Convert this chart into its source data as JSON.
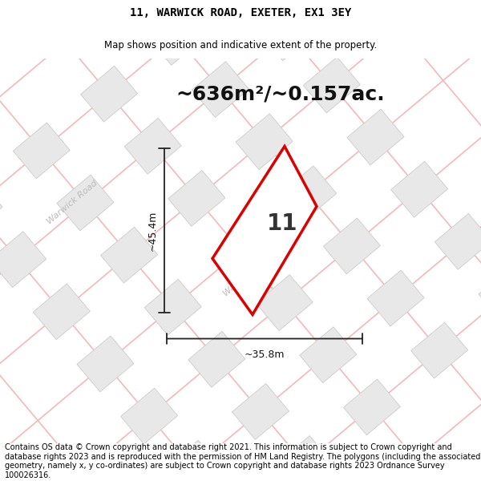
{
  "title_line1": "11, WARWICK ROAD, EXETER, EX1 3EY",
  "title_line2": "Map shows position and indicative extent of the property.",
  "area_text": "~636m²/~0.157ac.",
  "dim_vertical": "~45.4m",
  "dim_horizontal": "~35.8m",
  "property_number": "11",
  "footer_text": "Contains OS data © Crown copyright and database right 2021. This information is subject to Crown copyright and database rights 2023 and is reproduced with the permission of HM Land Registry. The polygons (including the associated geometry, namely x, y co-ordinates) are subject to Crown copyright and database rights 2023 Ordnance Survey 100026316.",
  "bg_color": "#ffffff",
  "road_color": "#f5b8b8",
  "road_label_color": "#bbbbbb",
  "building_fill": "#e8e8e8",
  "building_edge": "#cccccc",
  "property_fill": "#ffffff",
  "property_edge": "#dd0000",
  "dim_line_color": "#222222",
  "title_fontsize": 10,
  "subtitle_fontsize": 8.5,
  "area_fontsize": 18,
  "number_fontsize": 20,
  "dim_fontsize": 9,
  "footer_fontsize": 7
}
